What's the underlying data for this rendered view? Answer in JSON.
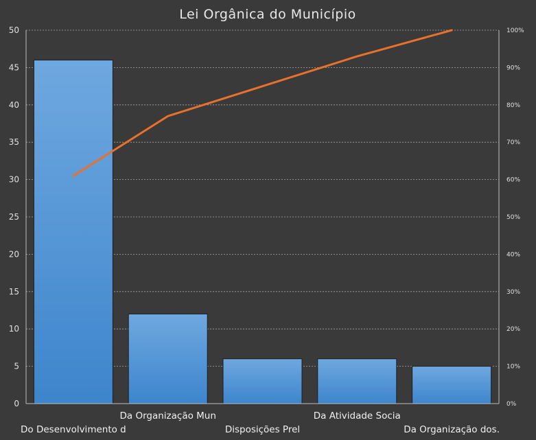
{
  "chart_data": {
    "type": "bar",
    "title": "Lei Orgânica do Município",
    "categories": [
      "Do Desenvolvimento d",
      "Da Organização Mun",
      "Disposições Prel",
      "Da Atividade Socia",
      "Da Organização dos."
    ],
    "series": [
      {
        "type": "bar",
        "values": [
          46,
          12,
          6,
          6,
          5
        ]
      },
      {
        "type": "line",
        "axis": "secondary",
        "values": [
          0.61,
          0.77,
          0.85,
          0.93,
          1.0
        ]
      }
    ],
    "ylim": [
      0,
      50
    ],
    "yticks": [
      "0",
      "5",
      "10",
      "15",
      "20",
      "25",
      "30",
      "35",
      "40",
      "45",
      "50"
    ],
    "y2lim": [
      0,
      1
    ],
    "y2ticks": [
      "0%",
      "10%",
      "20%",
      "30%",
      "40%",
      "50%",
      "60%",
      "70%",
      "80%",
      "90%",
      "100%"
    ],
    "grid": true,
    "colors": {
      "background": "#3a3a3a",
      "bar_top": "#6fa8e0",
      "bar_bottom": "#3d85cc",
      "line": "#e8712c"
    }
  }
}
